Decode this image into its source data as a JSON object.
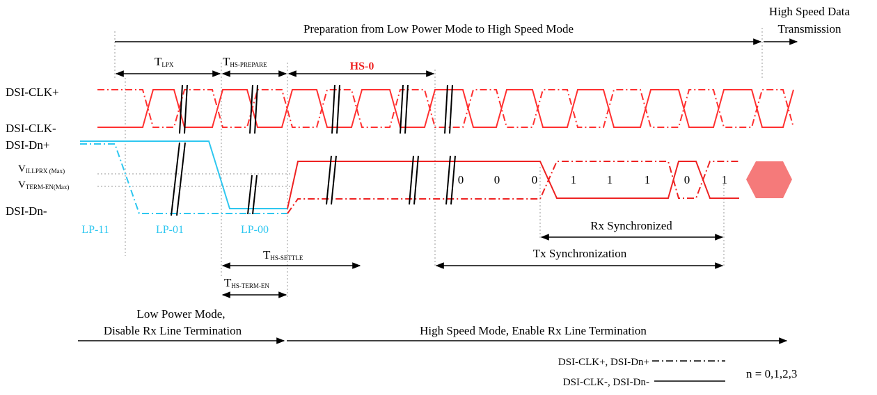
{
  "colors": {
    "clock": "#ff3030",
    "hs_data": "#ee2222",
    "hs_blob": "#f57a7a",
    "lp": "#2ec7f0",
    "text": "#000000",
    "guide": "#9a9a9a"
  },
  "headers": {
    "preparation": "Preparation from Low Power Mode to High Speed Mode",
    "hs_data_line1": "High Speed Data",
    "hs_data_line2": "Transmission"
  },
  "timing": {
    "tlpx_main": "T",
    "tlpx_sub": "LPX",
    "thsprep_main": "T",
    "thsprep_sub": "HS-PREPARE",
    "hs0": "HS-0",
    "thssettle_main": "T",
    "thssettle_sub": "HS-SETTLE",
    "thstermen_main": "T",
    "thstermen_sub": "HS-TERM-EN"
  },
  "signals": {
    "clk_plus": "DSI-CLK+",
    "clk_minus": "DSI-CLK-",
    "dn_plus": "DSI-Dn+",
    "dn_minus": "DSI-Dn-",
    "vill_main": "V",
    "vill_sub": "ILLPRX (Max)",
    "vterm_main": "V",
    "vterm_sub": "TERM-EN(Max)"
  },
  "lp_states": {
    "lp11": "LP-11",
    "lp01": "LP-01",
    "lp00": "LP-00"
  },
  "bits": [
    "0",
    "0",
    "0",
    "1",
    "1",
    "1",
    "0",
    "1"
  ],
  "sync": {
    "rx": "Rx Synchronized",
    "tx": "Tx Synchronization"
  },
  "modes": {
    "lp_line1": "Low Power Mode,",
    "lp_line2": "Disable Rx Line Termination",
    "hs": "High Speed Mode, Enable Rx Line Termination"
  },
  "legend": {
    "plus": "DSI-CLK+, DSI-Dn+",
    "minus": "DSI-CLK-, DSI-Dn-",
    "n": "n = 0,1,2,3"
  }
}
